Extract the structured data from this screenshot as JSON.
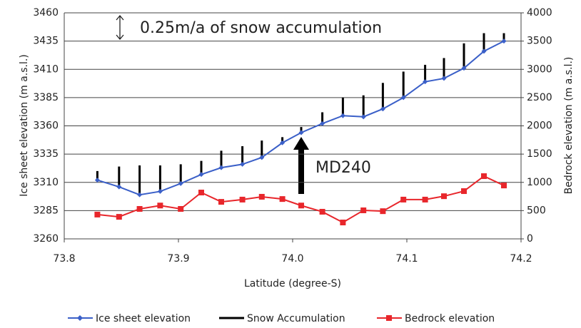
{
  "chart_data": {
    "type": "line",
    "xlabel": "Latitude (degree-S)",
    "ylabel": "Ice sheet elevation (m a.s.l.)",
    "y2label": "Bedrock elevation (m a.s.l.)",
    "annotations": [
      "0.25m/a of snow accumulation",
      "MD240"
    ],
    "x": [
      73.829,
      73.848,
      73.866,
      73.884,
      73.902,
      73.92,
      73.9375,
      73.956,
      73.973,
      73.991,
      74.0075,
      74.026,
      74.044,
      74.062,
      74.079,
      74.097,
      74.116,
      74.1325,
      74.15,
      74.1675,
      74.185
    ],
    "series": [
      {
        "name": "Ice sheet elevation",
        "color": "#3a5fc8",
        "values": [
          3312,
          3306,
          3299,
          3302,
          3309,
          3317,
          3323,
          3326,
          3332,
          3345,
          3354,
          3362,
          3369,
          3368,
          3375,
          3385,
          3399,
          3402,
          3411,
          3426,
          3435
        ]
      },
      {
        "name": "Snow Accumulation",
        "color": "#000000",
        "values": [
          3320,
          3324,
          3325,
          3325,
          3326,
          3329,
          3338,
          3342,
          3347,
          3350,
          3359,
          3372,
          3385,
          3387,
          3398,
          3408,
          3414,
          3420,
          3433,
          3442,
          3442
        ]
      },
      {
        "name": "Bedrock elevation",
        "color": "#e8262b",
        "axis": "y2",
        "values": [
          430,
          390,
          530,
          590,
          530,
          820,
          655,
          695,
          745,
          705,
          590,
          480,
          290,
          505,
          490,
          695,
          695,
          755,
          845,
          1110,
          945
        ]
      }
    ],
    "xlim": [
      73.8,
      74.2
    ],
    "xticks": [
      73.8,
      73.9,
      {
        "value": 74,
        "label": "74.0"
      },
      74.1,
      74.2
    ],
    "ylim": [
      3260,
      3460
    ],
    "yticks": [
      3260,
      3285,
      3310,
      3335,
      3360,
      3385,
      3410,
      3435,
      3460
    ],
    "y2lim": [
      0,
      4000
    ],
    "y2ticks": [
      0,
      500,
      1000,
      1500,
      2000,
      2500,
      3000,
      3500,
      4000
    ],
    "grid": true
  }
}
